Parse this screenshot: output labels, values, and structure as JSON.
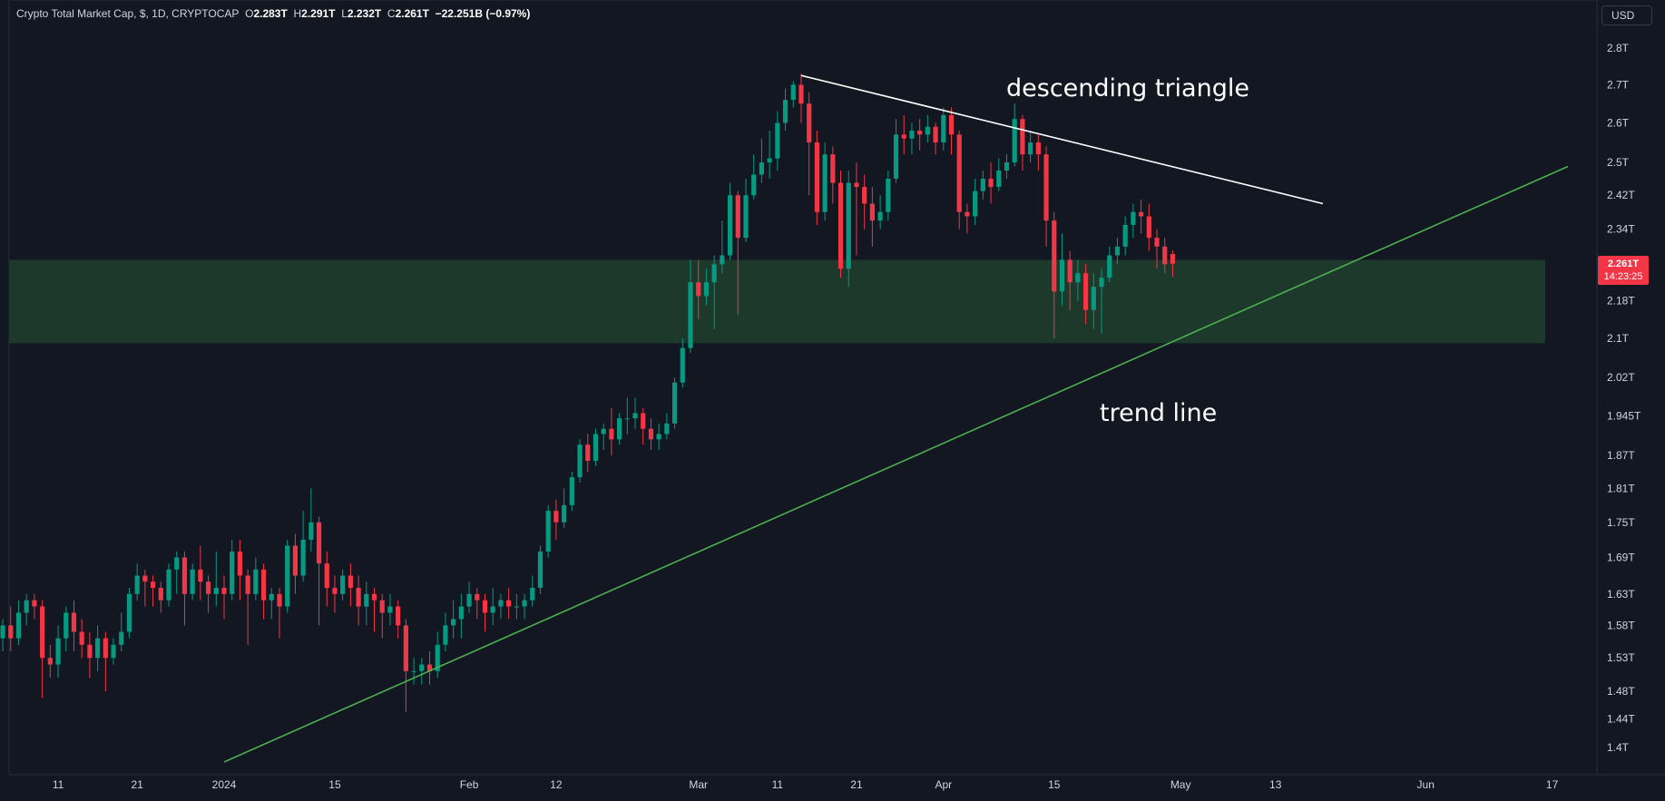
{
  "legend": {
    "symbol": "Crypto Total Market Cap, $, 1D, CRYPTOCAP",
    "o_label": "O",
    "o_value": "2.283T",
    "h_label": "H",
    "h_value": "2.291T",
    "l_label": "L",
    "l_value": "2.232T",
    "c_label": "C",
    "c_value": "2.261T",
    "change": "−22.251B (−0.97%)"
  },
  "currency_button": "USD",
  "last_price": {
    "value": "2.261T",
    "countdown": "14:23:25",
    "color": "#f23645"
  },
  "annotations": {
    "triangle": "descending triangle",
    "trend": "trend line"
  },
  "colors": {
    "up": "#089981",
    "down": "#f23645",
    "zone": "#1e3b2c",
    "trendline": "#4caf50",
    "resistance": "#ffffff",
    "background": "#131722"
  },
  "chart_data": {
    "type": "candlestick",
    "scale": "log",
    "y_ticks": [
      "2.8T",
      "2.7T",
      "2.6T",
      "2.5T",
      "2.42T",
      "2.34T",
      "2.26T",
      "2.18T",
      "2.1T",
      "2.02T",
      "1.945T",
      "1.87T",
      "1.81T",
      "1.75T",
      "1.69T",
      "1.63T",
      "1.58T",
      "1.53T",
      "1.48T",
      "1.44T",
      "1.4T"
    ],
    "x_ticks": [
      "11",
      "21",
      "2024",
      "15",
      "Feb",
      "12",
      "Mar",
      "11",
      "21",
      "Apr",
      "15",
      "May",
      "13",
      "Jun",
      "17"
    ],
    "support_zone": {
      "low": 2.09,
      "high": 2.27
    },
    "resistance_line": {
      "from": {
        "date": "2024-03-14",
        "value": 2.725
      },
      "to": {
        "date": "2024-05-19",
        "value": 2.4
      }
    },
    "trend_line": {
      "from": {
        "date": "2024-01-01",
        "value": 1.38
      },
      "to": {
        "date": "2024-06-19",
        "value": 2.49
      }
    },
    "candles": [
      [
        1.49,
        1.55,
        1.48,
        1.56
      ],
      [
        1.55,
        1.56,
        1.51,
        1.58
      ],
      [
        1.56,
        1.58,
        1.54,
        1.59
      ],
      [
        1.58,
        1.56,
        1.54,
        1.61
      ],
      [
        1.56,
        1.6,
        1.55,
        1.62
      ],
      [
        1.6,
        1.62,
        1.58,
        1.63
      ],
      [
        1.62,
        1.61,
        1.59,
        1.63
      ],
      [
        1.61,
        1.53,
        1.47,
        1.62
      ],
      [
        1.53,
        1.52,
        1.5,
        1.55
      ],
      [
        1.52,
        1.56,
        1.5,
        1.58
      ],
      [
        1.56,
        1.6,
        1.54,
        1.61
      ],
      [
        1.6,
        1.57,
        1.54,
        1.62
      ],
      [
        1.57,
        1.55,
        1.53,
        1.59
      ],
      [
        1.55,
        1.53,
        1.5,
        1.57
      ],
      [
        1.53,
        1.56,
        1.51,
        1.58
      ],
      [
        1.56,
        1.53,
        1.48,
        1.57
      ],
      [
        1.53,
        1.55,
        1.52,
        1.56
      ],
      [
        1.55,
        1.57,
        1.54,
        1.6
      ],
      [
        1.57,
        1.63,
        1.56,
        1.64
      ],
      [
        1.63,
        1.66,
        1.62,
        1.68
      ],
      [
        1.66,
        1.65,
        1.61,
        1.67
      ],
      [
        1.65,
        1.64,
        1.61,
        1.66
      ],
      [
        1.64,
        1.62,
        1.6,
        1.65
      ],
      [
        1.62,
        1.67,
        1.61,
        1.68
      ],
      [
        1.67,
        1.69,
        1.63,
        1.7
      ],
      [
        1.69,
        1.63,
        1.58,
        1.7
      ],
      [
        1.63,
        1.67,
        1.62,
        1.68
      ],
      [
        1.67,
        1.65,
        1.62,
        1.71
      ],
      [
        1.65,
        1.63,
        1.6,
        1.66
      ],
      [
        1.63,
        1.64,
        1.61,
        1.7
      ],
      [
        1.64,
        1.63,
        1.59,
        1.66
      ],
      [
        1.63,
        1.7,
        1.62,
        1.72
      ],
      [
        1.7,
        1.66,
        1.62,
        1.72
      ],
      [
        1.66,
        1.63,
        1.55,
        1.67
      ],
      [
        1.63,
        1.67,
        1.62,
        1.69
      ],
      [
        1.67,
        1.62,
        1.59,
        1.68
      ],
      [
        1.62,
        1.63,
        1.59,
        1.64
      ],
      [
        1.63,
        1.61,
        1.56,
        1.64
      ],
      [
        1.61,
        1.71,
        1.6,
        1.72
      ],
      [
        1.71,
        1.66,
        1.63,
        1.73
      ],
      [
        1.66,
        1.72,
        1.65,
        1.77
      ],
      [
        1.72,
        1.75,
        1.7,
        1.81
      ],
      [
        1.75,
        1.68,
        1.58,
        1.76
      ],
      [
        1.68,
        1.64,
        1.61,
        1.7
      ],
      [
        1.64,
        1.63,
        1.6,
        1.66
      ],
      [
        1.63,
        1.66,
        1.62,
        1.67
      ],
      [
        1.66,
        1.64,
        1.61,
        1.68
      ],
      [
        1.64,
        1.61,
        1.58,
        1.66
      ],
      [
        1.61,
        1.63,
        1.58,
        1.65
      ],
      [
        1.63,
        1.62,
        1.57,
        1.64
      ],
      [
        1.62,
        1.6,
        1.56,
        1.63
      ],
      [
        1.6,
        1.61,
        1.58,
        1.63
      ],
      [
        1.61,
        1.58,
        1.56,
        1.62
      ],
      [
        1.58,
        1.51,
        1.45,
        1.59
      ],
      [
        1.51,
        1.51,
        1.49,
        1.53
      ],
      [
        1.51,
        1.52,
        1.49,
        1.53
      ],
      [
        1.52,
        1.51,
        1.49,
        1.54
      ],
      [
        1.51,
        1.55,
        1.5,
        1.57
      ],
      [
        1.55,
        1.58,
        1.54,
        1.6
      ],
      [
        1.58,
        1.59,
        1.56,
        1.62
      ],
      [
        1.59,
        1.61,
        1.56,
        1.63
      ],
      [
        1.61,
        1.63,
        1.6,
        1.65
      ],
      [
        1.63,
        1.62,
        1.59,
        1.64
      ],
      [
        1.62,
        1.6,
        1.57,
        1.63
      ],
      [
        1.6,
        1.61,
        1.58,
        1.64
      ],
      [
        1.61,
        1.62,
        1.59,
        1.63
      ],
      [
        1.62,
        1.61,
        1.59,
        1.64
      ],
      [
        1.61,
        1.61,
        1.59,
        1.63
      ],
      [
        1.61,
        1.62,
        1.59,
        1.63
      ],
      [
        1.62,
        1.64,
        1.61,
        1.66
      ],
      [
        1.64,
        1.7,
        1.63,
        1.71
      ],
      [
        1.7,
        1.77,
        1.69,
        1.78
      ],
      [
        1.77,
        1.75,
        1.72,
        1.79
      ],
      [
        1.75,
        1.78,
        1.74,
        1.81
      ],
      [
        1.78,
        1.83,
        1.77,
        1.84
      ],
      [
        1.83,
        1.89,
        1.82,
        1.9
      ],
      [
        1.89,
        1.86,
        1.84,
        1.91
      ],
      [
        1.86,
        1.91,
        1.85,
        1.92
      ],
      [
        1.91,
        1.92,
        1.88,
        1.93
      ],
      [
        1.92,
        1.9,
        1.87,
        1.96
      ],
      [
        1.9,
        1.94,
        1.89,
        1.95
      ],
      [
        1.94,
        1.94,
        1.91,
        1.98
      ],
      [
        1.94,
        1.95,
        1.92,
        1.98
      ],
      [
        1.95,
        1.92,
        1.89,
        1.96
      ],
      [
        1.92,
        1.9,
        1.88,
        1.94
      ],
      [
        1.9,
        1.91,
        1.88,
        1.93
      ],
      [
        1.91,
        1.93,
        1.9,
        1.95
      ],
      [
        1.93,
        2.01,
        1.92,
        2.02
      ],
      [
        2.01,
        2.08,
        2.0,
        2.1
      ],
      [
        2.08,
        2.22,
        2.07,
        2.27
      ],
      [
        2.22,
        2.19,
        2.14,
        2.27
      ],
      [
        2.19,
        2.22,
        2.17,
        2.25
      ],
      [
        2.22,
        2.26,
        2.12,
        2.28
      ],
      [
        2.26,
        2.28,
        2.24,
        2.36
      ],
      [
        2.28,
        2.42,
        2.27,
        2.45
      ],
      [
        2.42,
        2.32,
        2.15,
        2.43
      ],
      [
        2.32,
        2.42,
        2.31,
        2.46
      ],
      [
        2.42,
        2.47,
        2.41,
        2.52
      ],
      [
        2.47,
        2.5,
        2.45,
        2.56
      ],
      [
        2.5,
        2.51,
        2.46,
        2.58
      ],
      [
        2.51,
        2.6,
        2.48,
        2.63
      ],
      [
        2.6,
        2.66,
        2.58,
        2.69
      ],
      [
        2.66,
        2.7,
        2.64,
        2.71
      ],
      [
        2.7,
        2.65,
        2.6,
        2.73
      ],
      [
        2.65,
        2.55,
        2.42,
        2.68
      ],
      [
        2.55,
        2.38,
        2.35,
        2.58
      ],
      [
        2.38,
        2.52,
        2.36,
        2.55
      ],
      [
        2.52,
        2.45,
        2.4,
        2.54
      ],
      [
        2.45,
        2.25,
        2.23,
        2.48
      ],
      [
        2.25,
        2.45,
        2.21,
        2.48
      ],
      [
        2.45,
        2.44,
        2.28,
        2.5
      ],
      [
        2.44,
        2.4,
        2.34,
        2.47
      ],
      [
        2.4,
        2.36,
        2.3,
        2.44
      ],
      [
        2.36,
        2.38,
        2.34,
        2.42
      ],
      [
        2.38,
        2.46,
        2.36,
        2.48
      ],
      [
        2.46,
        2.57,
        2.45,
        2.61
      ],
      [
        2.57,
        2.56,
        2.52,
        2.62
      ],
      [
        2.56,
        2.58,
        2.52,
        2.6
      ],
      [
        2.58,
        2.57,
        2.53,
        2.61
      ],
      [
        2.57,
        2.59,
        2.55,
        2.62
      ],
      [
        2.59,
        2.55,
        2.52,
        2.6
      ],
      [
        2.55,
        2.62,
        2.53,
        2.64
      ],
      [
        2.62,
        2.57,
        2.52,
        2.64
      ],
      [
        2.57,
        2.38,
        2.34,
        2.58
      ],
      [
        2.38,
        2.37,
        2.33,
        2.4
      ],
      [
        2.37,
        2.43,
        2.35,
        2.46
      ],
      [
        2.43,
        2.46,
        2.41,
        2.48
      ],
      [
        2.46,
        2.44,
        2.4,
        2.5
      ],
      [
        2.44,
        2.48,
        2.43,
        2.51
      ],
      [
        2.48,
        2.5,
        2.46,
        2.52
      ],
      [
        2.5,
        2.61,
        2.49,
        2.65
      ],
      [
        2.61,
        2.52,
        2.48,
        2.62
      ],
      [
        2.52,
        2.55,
        2.5,
        2.58
      ],
      [
        2.55,
        2.52,
        2.48,
        2.57
      ],
      [
        2.52,
        2.36,
        2.3,
        2.54
      ],
      [
        2.36,
        2.2,
        2.1,
        2.38
      ],
      [
        2.2,
        2.27,
        2.17,
        2.33
      ],
      [
        2.27,
        2.22,
        2.16,
        2.29
      ],
      [
        2.22,
        2.24,
        2.18,
        2.27
      ],
      [
        2.24,
        2.16,
        2.13,
        2.26
      ],
      [
        2.16,
        2.21,
        2.12,
        2.24
      ],
      [
        2.21,
        2.23,
        2.11,
        2.25
      ],
      [
        2.23,
        2.28,
        2.22,
        2.3
      ],
      [
        2.28,
        2.3,
        2.26,
        2.32
      ],
      [
        2.3,
        2.35,
        2.28,
        2.37
      ],
      [
        2.35,
        2.38,
        2.32,
        2.4
      ],
      [
        2.38,
        2.37,
        2.33,
        2.41
      ],
      [
        2.37,
        2.32,
        2.29,
        2.4
      ],
      [
        2.32,
        2.3,
        2.25,
        2.34
      ],
      [
        2.3,
        2.26,
        2.24,
        2.32
      ],
      [
        2.283,
        2.261,
        2.232,
        2.291
      ]
    ]
  }
}
